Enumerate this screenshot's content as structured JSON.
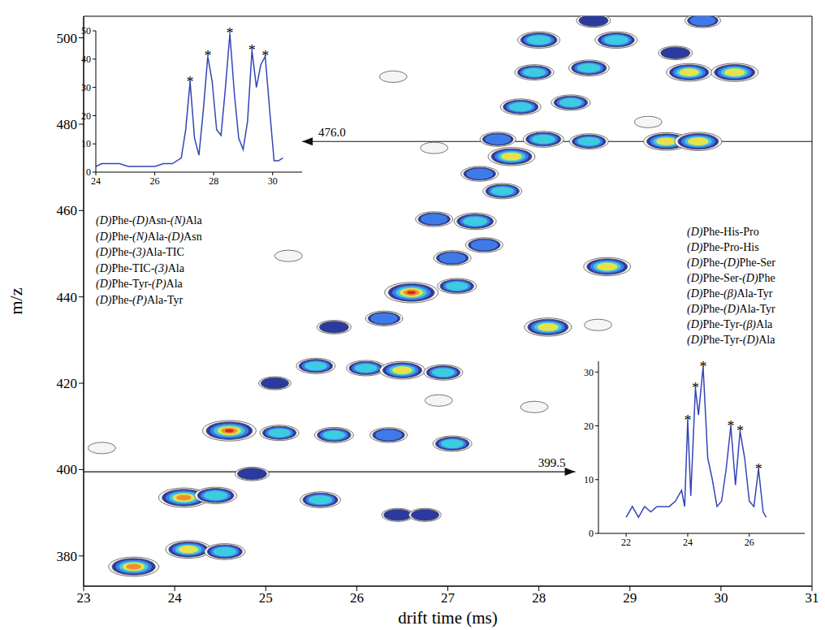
{
  "chart_data": [
    {
      "type": "contour",
      "x_label": "drift time (ms)",
      "y_label": "m/z",
      "xlim": [
        23,
        31
      ],
      "xticks": [
        23,
        24,
        25,
        26,
        27,
        28,
        29,
        30,
        31
      ],
      "ylim": [
        373,
        505
      ],
      "yticks": [
        380,
        400,
        420,
        440,
        460,
        480,
        500
      ],
      "x": [
        23.55,
        24.15,
        24.55,
        24.1,
        24.45,
        24.85,
        25.6,
        26.45,
        26.75,
        24.6,
        25.15,
        25.75,
        26.35,
        27.05,
        25.1,
        25.55,
        26.1,
        26.5,
        26.95,
        25.75,
        26.3,
        26.6,
        27.1,
        28.1,
        27.05,
        27.4,
        28.75,
        26.85,
        27.3,
        27.6,
        27.35,
        27.7,
        27.55,
        28.05,
        28.55,
        29.4,
        29.75,
        27.8,
        28.35,
        27.95,
        28.55,
        29.65,
        30.15,
        28.0,
        28.85,
        29.5,
        29.8,
        28.6,
        23.2,
        25.25,
        26.4,
        26.85,
        27.95,
        28.65,
        26.9,
        29.2
      ],
      "values": [
        377.5,
        381.5,
        381,
        393.5,
        394,
        399,
        393,
        389.5,
        389.5,
        409,
        408.5,
        408,
        408,
        406,
        420,
        424,
        423.5,
        423,
        422.5,
        433,
        435,
        441,
        442.5,
        433,
        449,
        452,
        447,
        458,
        457.5,
        464.5,
        468.5,
        472.5,
        476.5,
        476.5,
        476,
        476,
        476,
        484,
        485,
        492,
        493,
        492,
        492,
        499.5,
        499.5,
        496.5,
        504,
        504,
        405,
        449.5,
        491,
        474.5,
        414.5,
        433.5,
        416,
        480.5
      ],
      "intensity": [
        0.85,
        0.7,
        0.55,
        0.85,
        0.6,
        0.35,
        0.55,
        0.3,
        0.3,
        0.95,
        0.5,
        0.5,
        0.45,
        0.5,
        0.3,
        0.5,
        0.5,
        0.7,
        0.5,
        0.35,
        0.45,
        0.95,
        0.5,
        0.75,
        0.45,
        0.45,
        0.75,
        0.45,
        0.6,
        0.5,
        0.45,
        0.75,
        0.4,
        0.55,
        0.5,
        0.7,
        0.75,
        0.55,
        0.5,
        0.5,
        0.55,
        0.7,
        0.75,
        0.6,
        0.6,
        0.35,
        0.4,
        0.35,
        0.15,
        0.15,
        0.15,
        0.15,
        0.15,
        0.15,
        0.15,
        0.15
      ],
      "annotations": [
        {
          "text": "476.0",
          "y": 476.0,
          "x_from": 31,
          "x_to": 25.4
        },
        {
          "text": "399.5",
          "y": 399.5,
          "x_from": 23,
          "x_to": 28.4
        }
      ]
    },
    {
      "type": "line",
      "color": "#3345b8",
      "xlim": [
        24,
        31
      ],
      "xticks": [
        24,
        26,
        28,
        30
      ],
      "ylim": [
        0,
        50
      ],
      "yticks": [
        0,
        10,
        20,
        30,
        40,
        50
      ],
      "x": [
        24.0,
        24.2,
        24.5,
        24.8,
        25.1,
        25.4,
        25.7,
        26.0,
        26.3,
        26.6,
        26.9,
        27.05,
        27.2,
        27.35,
        27.5,
        27.65,
        27.8,
        27.95,
        28.1,
        28.25,
        28.4,
        28.55,
        28.7,
        28.85,
        29.0,
        29.15,
        29.3,
        29.45,
        29.6,
        29.75,
        29.9,
        30.05,
        30.2,
        30.35
      ],
      "values": [
        2,
        3,
        3,
        3,
        2,
        2,
        2,
        2,
        3,
        3,
        5,
        15,
        32,
        12,
        6,
        22,
        41,
        32,
        15,
        13,
        30,
        49,
        28,
        12,
        8,
        18,
        43,
        30,
        38,
        41,
        22,
        4,
        4,
        5
      ],
      "peaks": [
        27.2,
        27.8,
        28.55,
        29.3,
        29.75
      ],
      "peak_label": "*",
      "labels": [
        "(D)Phe-(D)Asn-(N)Ala",
        "(D)Phe-(N)Ala-(D)Asn",
        "(D)Phe-(3)Ala-TIC",
        "(D)Phe-TIC-(3)Ala",
        "(D)Phe-Tyr-(P)Ala",
        "(D)Phe-(P)Ala-Tyr"
      ]
    },
    {
      "type": "line",
      "color": "#3345b8",
      "xlim": [
        21.1,
        27.8
      ],
      "xticks": [
        22,
        24,
        26
      ],
      "ylim": [
        0,
        32
      ],
      "yticks": [
        0,
        10,
        20,
        30
      ],
      "x": [
        22.0,
        22.2,
        22.4,
        22.6,
        22.8,
        23.0,
        23.2,
        23.4,
        23.6,
        23.8,
        23.9,
        24.0,
        24.1,
        24.25,
        24.35,
        24.5,
        24.65,
        24.8,
        24.95,
        25.1,
        25.25,
        25.4,
        25.55,
        25.7,
        25.85,
        26.0,
        26.15,
        26.3,
        26.45,
        26.55
      ],
      "values": [
        3,
        5,
        3,
        5,
        4,
        5,
        5,
        5,
        6,
        8,
        5,
        21,
        7,
        27,
        22,
        31,
        14,
        10,
        5,
        6,
        12,
        20,
        9,
        19,
        14,
        6,
        5,
        12,
        4,
        3
      ],
      "peaks": [
        24.0,
        24.25,
        24.5,
        25.4,
        25.7,
        26.3
      ],
      "peak_label": "*",
      "labels": [
        "(D)Phe-His-Pro",
        "(D)Phe-Pro-His",
        "(D)Phe-(D)Phe-Ser",
        "(D)Phe-Ser-(D)Phe",
        "(D)Phe-(β)Ala-Tyr",
        "(D)Phe-(D)Ala-Tyr",
        "(D)Phe-Tyr-(β)Ala",
        "(D)Phe-Tyr-(D)Ala"
      ]
    }
  ]
}
